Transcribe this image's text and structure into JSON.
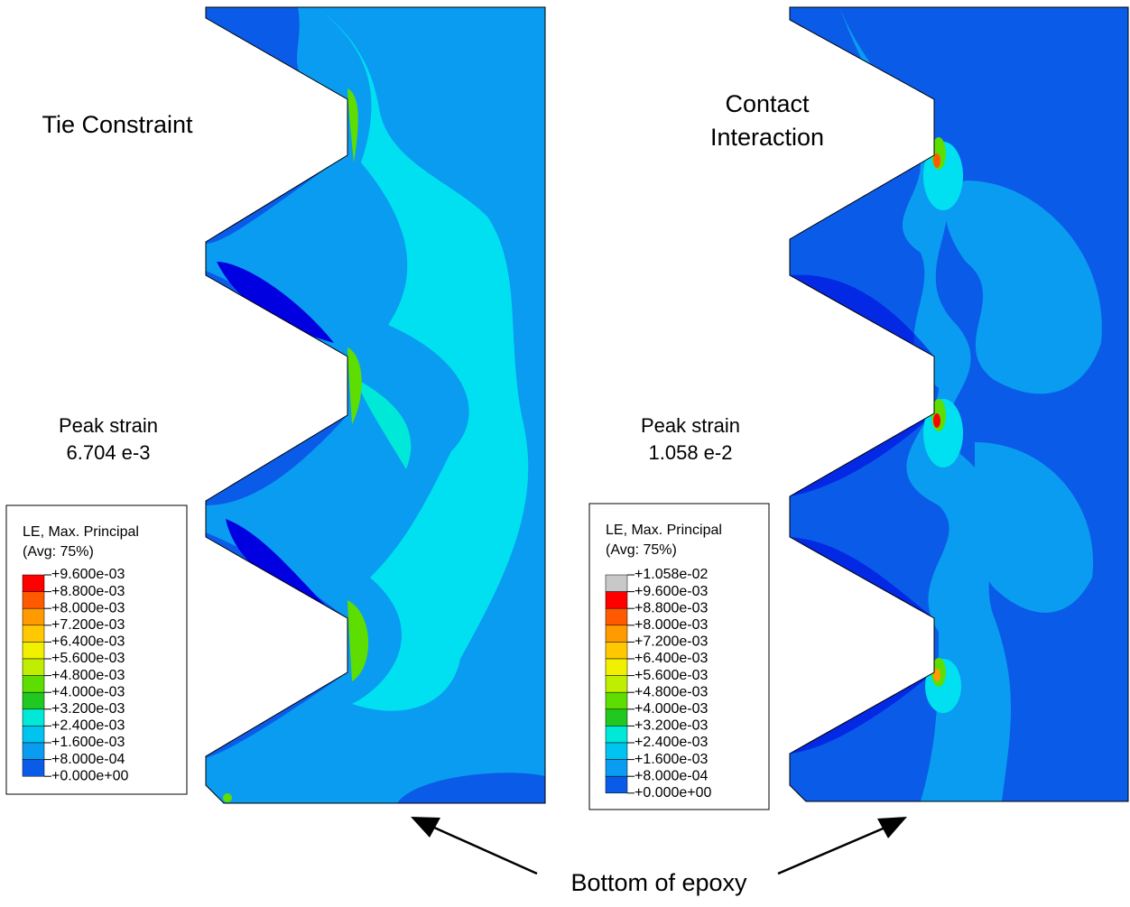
{
  "panels": [
    {
      "title": [
        "Tie Constraint"
      ],
      "peak_label": "Peak strain",
      "peak_value": "6.704 e-3",
      "legend": {
        "title": [
          "LE, Max. Principal",
          "(Avg: 75%)"
        ],
        "labels": [
          "+9.600e-03",
          "+8.800e-03",
          "+8.000e-03",
          "+7.200e-03",
          "+6.400e-03",
          "+5.600e-03",
          "+4.800e-03",
          "+4.000e-03",
          "+3.200e-03",
          "+2.400e-03",
          "+1.600e-03",
          "+8.000e-04",
          "+0.000e+00"
        ],
        "colors": [
          "#ff0000",
          "#ff5a00",
          "#ff9a00",
          "#ffc800",
          "#f0f000",
          "#c0ee00",
          "#5ede00",
          "#20c820",
          "#00e8d8",
          "#00c4f0",
          "#0a9cf0",
          "#0a5ce8",
          "#0000e0"
        ]
      }
    },
    {
      "title": [
        "Contact",
        "Interaction"
      ],
      "peak_label": "Peak strain",
      "peak_value": "1.058 e-2",
      "legend": {
        "title": [
          "LE, Max. Principal",
          "(Avg: 75%)"
        ],
        "labels": [
          "+1.058e-02",
          "+9.600e-03",
          "+8.800e-03",
          "+8.000e-03",
          "+7.200e-03",
          "+6.400e-03",
          "+5.600e-03",
          "+4.800e-03",
          "+4.000e-03",
          "+3.200e-03",
          "+2.400e-03",
          "+1.600e-03",
          "+8.000e-04",
          "+0.000e+00"
        ],
        "colors": [
          "#c8c8c8",
          "#ff0000",
          "#ff5a00",
          "#ff9a00",
          "#ffc800",
          "#f0f000",
          "#c0ee00",
          "#5ede00",
          "#20c820",
          "#00e8d8",
          "#00c4f0",
          "#0a9cf0",
          "#0a5ce8",
          "#0000e0"
        ]
      }
    }
  ],
  "annotation": "Bottom of epoxy"
}
